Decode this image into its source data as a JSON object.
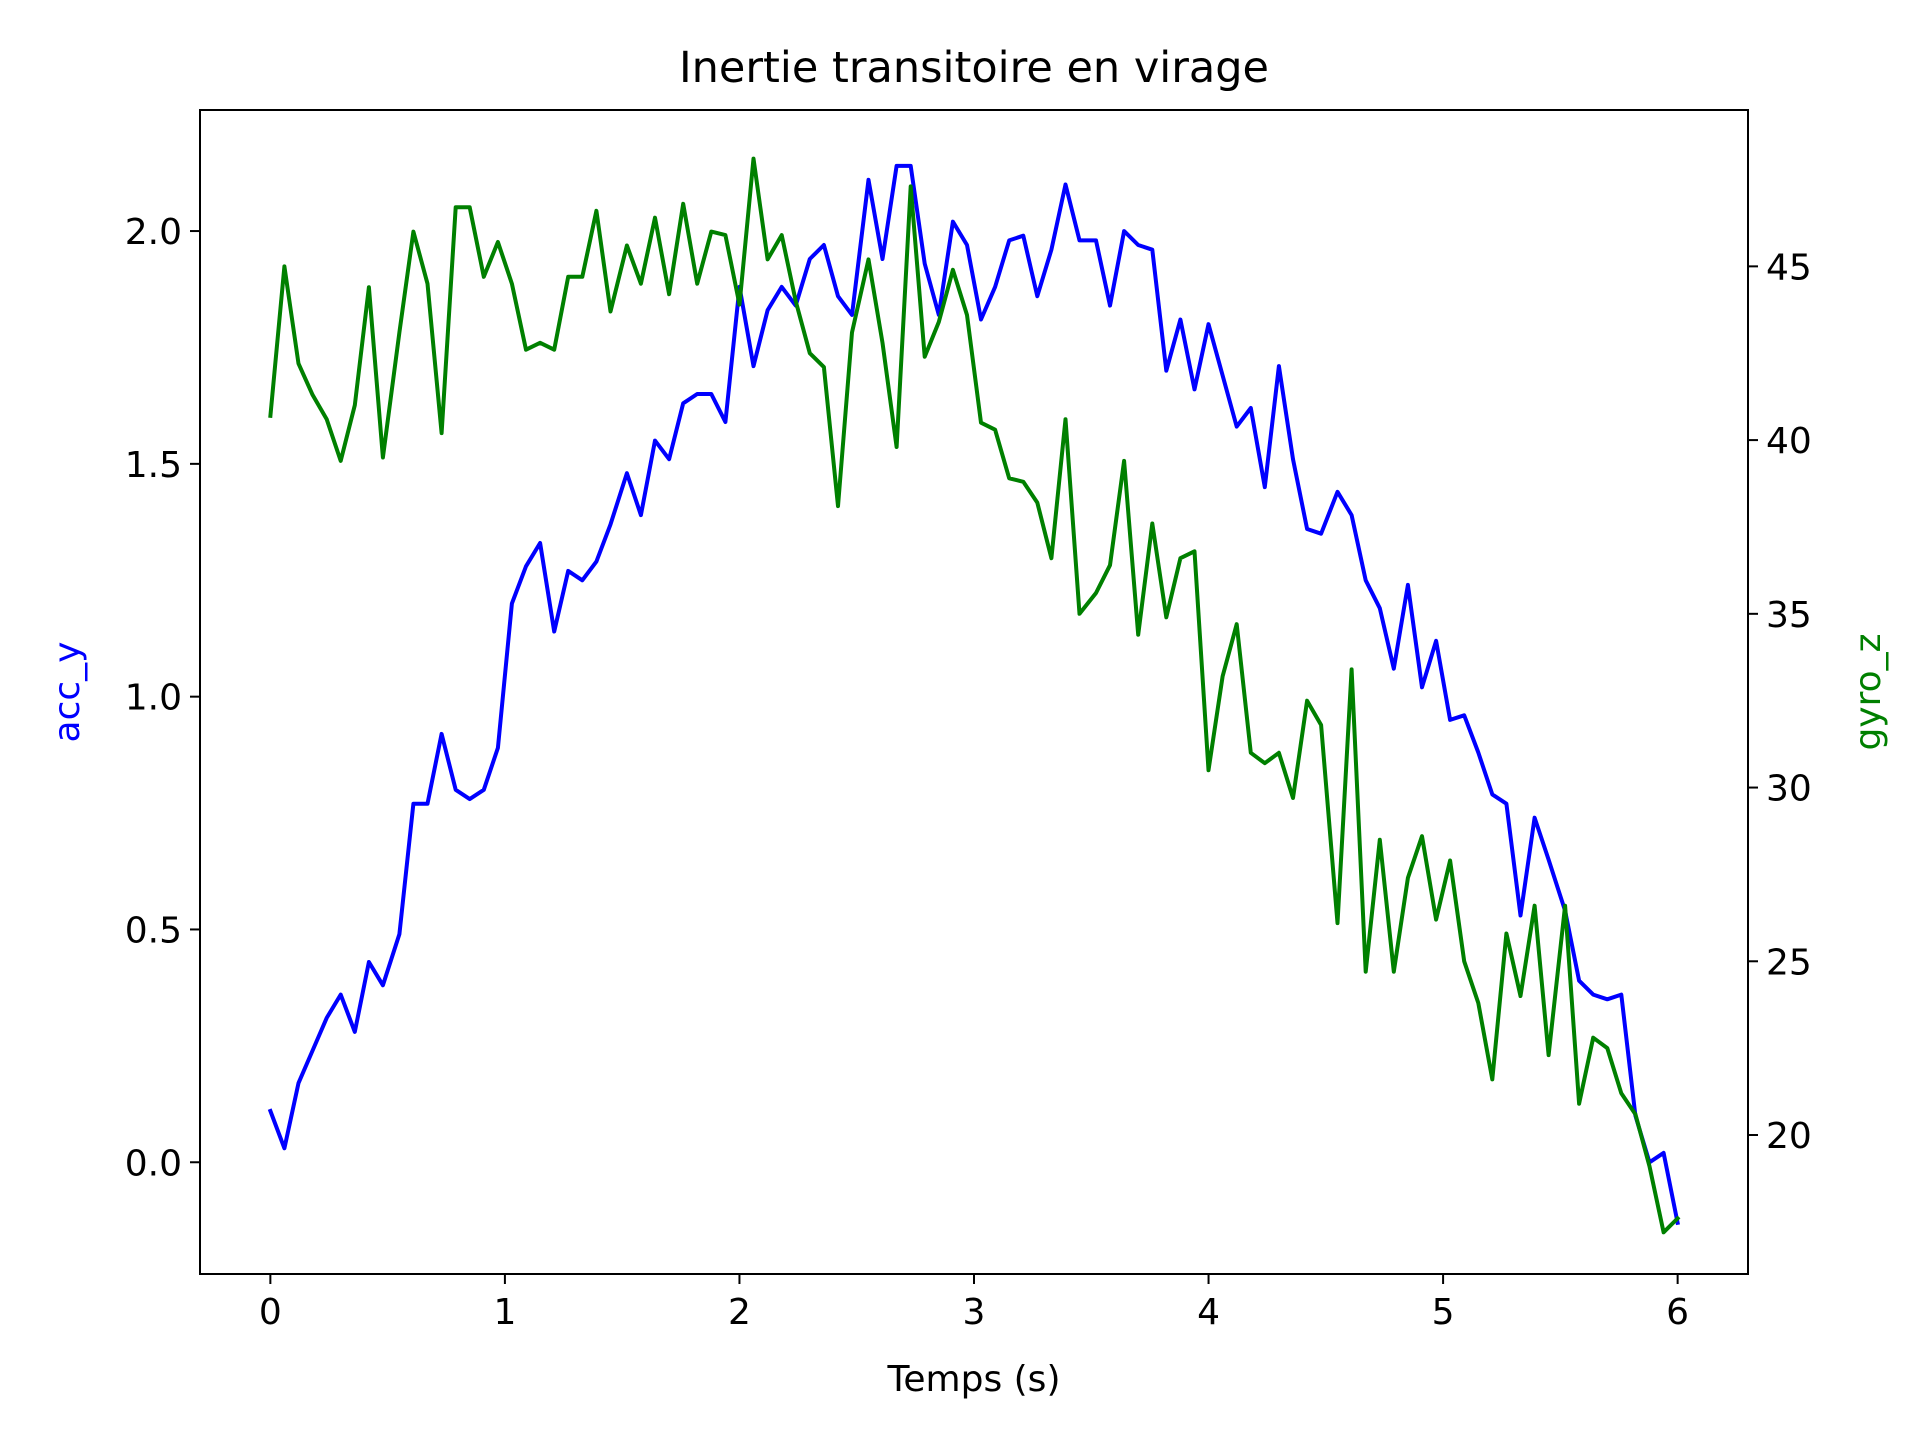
{
  "chart_data": {
    "type": "line",
    "title": "Inertie transitoire en virage",
    "xlabel": "Temps (s)",
    "y1label": "acc_y",
    "y2label": "gyro_z",
    "xlim": [
      -0.3,
      6.3
    ],
    "y1lim": [
      -0.24,
      2.26
    ],
    "y2lim": [
      16.0,
      49.5
    ],
    "x_ticks": [
      "0",
      "1",
      "2",
      "3",
      "4",
      "5",
      "6"
    ],
    "y1_ticks": [
      "0.0",
      "0.5",
      "1.0",
      "1.5",
      "2.0"
    ],
    "y2_ticks": [
      "20",
      "25",
      "30",
      "35",
      "40",
      "45"
    ],
    "x": [
      0.0,
      0.06,
      0.12,
      0.18,
      0.24,
      0.3,
      0.36,
      0.42,
      0.48,
      0.55,
      0.61,
      0.67,
      0.73,
      0.79,
      0.85,
      0.91,
      0.97,
      1.03,
      1.09,
      1.15,
      1.21,
      1.27,
      1.33,
      1.39,
      1.45,
      1.52,
      1.58,
      1.64,
      1.7,
      1.76,
      1.82,
      1.88,
      1.94,
      2.0,
      2.06,
      2.12,
      2.18,
      2.24,
      2.3,
      2.36,
      2.42,
      2.48,
      2.55,
      2.61,
      2.67,
      2.73,
      2.79,
      2.85,
      2.91,
      2.97,
      3.03,
      3.09,
      3.15,
      3.21,
      3.27,
      3.33,
      3.39,
      3.45,
      3.52,
      3.58,
      3.64,
      3.7,
      3.76,
      3.82,
      3.88,
      3.94,
      4.0,
      4.06,
      4.12,
      4.18,
      4.24,
      4.3,
      4.36,
      4.42,
      4.48,
      4.55,
      4.61,
      4.67,
      4.73,
      4.79,
      4.85,
      4.91,
      4.97,
      5.03,
      5.09,
      5.15,
      5.21,
      5.27,
      5.33,
      5.39,
      5.45,
      5.52,
      5.58,
      5.64,
      5.7,
      5.76,
      5.82,
      5.88,
      5.94,
      6.0
    ],
    "series": [
      {
        "name": "acc_y",
        "color": "#0000ff",
        "axis": "left",
        "values": [
          0.11,
          0.03,
          0.17,
          0.24,
          0.31,
          0.36,
          0.28,
          0.43,
          0.38,
          0.49,
          0.77,
          0.77,
          0.92,
          0.8,
          0.78,
          0.8,
          0.89,
          1.2,
          1.28,
          1.33,
          1.14,
          1.27,
          1.25,
          1.29,
          1.37,
          1.48,
          1.39,
          1.55,
          1.51,
          1.63,
          1.65,
          1.65,
          1.59,
          1.88,
          1.71,
          1.83,
          1.88,
          1.84,
          1.94,
          1.97,
          1.86,
          1.82,
          2.11,
          1.94,
          2.14,
          2.14,
          1.93,
          1.82,
          2.02,
          1.97,
          1.81,
          1.88,
          1.98,
          1.99,
          1.86,
          1.96,
          2.1,
          1.98,
          1.98,
          1.84,
          2.0,
          1.97,
          1.96,
          1.7,
          1.81,
          1.66,
          1.8,
          1.69,
          1.58,
          1.62,
          1.45,
          1.71,
          1.51,
          1.36,
          1.35,
          1.44,
          1.39,
          1.25,
          1.19,
          1.06,
          1.24,
          1.02,
          1.12,
          0.95,
          0.96,
          0.88,
          0.79,
          0.77,
          0.53,
          0.74,
          0.65,
          0.54,
          0.39,
          0.36,
          0.35,
          0.36,
          0.1,
          0.0,
          0.02,
          -0.13
        ]
      },
      {
        "name": "gyro_z",
        "color": "#008000",
        "axis": "right",
        "values": [
          40.7,
          45.0,
          42.2,
          41.3,
          40.6,
          39.4,
          41.0,
          44.4,
          39.5,
          43.1,
          46.0,
          44.5,
          40.2,
          46.7,
          46.7,
          44.7,
          45.7,
          44.5,
          42.6,
          42.8,
          42.6,
          44.7,
          44.7,
          46.6,
          43.7,
          45.6,
          44.5,
          46.4,
          44.2,
          46.8,
          44.5,
          46.0,
          45.9,
          43.9,
          48.1,
          45.2,
          45.9,
          44.0,
          42.5,
          42.1,
          38.1,
          43.1,
          45.2,
          42.8,
          39.8,
          47.3,
          42.4,
          43.4,
          44.9,
          43.6,
          40.5,
          40.3,
          38.9,
          38.8,
          38.2,
          36.6,
          40.6,
          35.0,
          35.6,
          36.4,
          39.4,
          34.4,
          37.6,
          34.9,
          36.6,
          36.8,
          30.5,
          33.2,
          34.7,
          31.0,
          30.7,
          31.0,
          29.7,
          32.5,
          31.8,
          26.1,
          33.4,
          24.7,
          28.5,
          24.7,
          27.4,
          28.6,
          26.2,
          27.9,
          25.0,
          23.8,
          21.6,
          25.8,
          24.0,
          26.6,
          22.3,
          26.6,
          20.9,
          22.8,
          22.5,
          21.2,
          20.6,
          19.1,
          17.2,
          17.6
        ]
      }
    ]
  }
}
